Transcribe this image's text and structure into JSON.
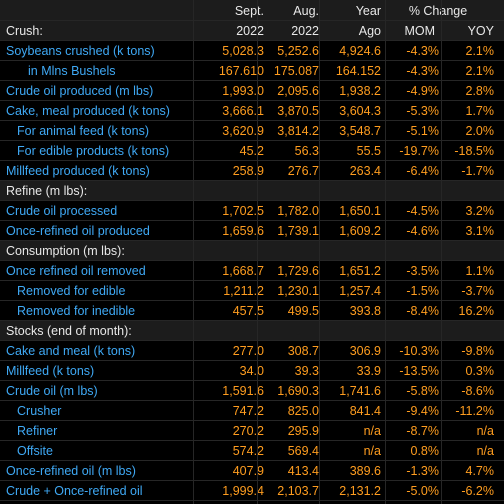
{
  "header": {
    "row1": {
      "sept": "Sept.",
      "aug": "Aug.",
      "year": "Year",
      "change": "% Change"
    },
    "row2": {
      "label": "Crush:",
      "sept": "2022",
      "aug": "2022",
      "year": "Ago",
      "mom": "MOM",
      "yoy": "YOY"
    }
  },
  "rows": [
    {
      "type": "data",
      "indent": 0,
      "label": "Soybeans crushed (k tons)",
      "sept": "5,028.3",
      "aug": "5,252.6",
      "year": "4,924.6",
      "mom": "-4.3%",
      "yoy": "2.1%"
    },
    {
      "type": "data",
      "indent": 1,
      "label": "in Mlns Bushels",
      "sept": "167.610",
      "aug": "175.087",
      "year": "164.152",
      "mom": "-4.3%",
      "yoy": "2.1%"
    },
    {
      "type": "data",
      "indent": 0,
      "label": "Crude oil produced (m lbs)",
      "sept": "1,993.0",
      "aug": "2,095.6",
      "year": "1,938.2",
      "mom": "-4.9%",
      "yoy": "2.8%"
    },
    {
      "type": "data",
      "indent": 0,
      "label": "Cake, meal produced (k tons)",
      "sept": "3,666.1",
      "aug": "3,870.5",
      "year": "3,604.3",
      "mom": "-5.3%",
      "yoy": "1.7%"
    },
    {
      "type": "data",
      "indent": 2,
      "label": "For animal feed (k tons)",
      "sept": "3,620.9",
      "aug": "3,814.2",
      "year": "3,548.7",
      "mom": "-5.1%",
      "yoy": "2.0%"
    },
    {
      "type": "data",
      "indent": 2,
      "label": "For edible products (k tons)",
      "sept": "45.2",
      "aug": "56.3",
      "year": "55.5",
      "mom": "-19.7%",
      "yoy": "-18.5%"
    },
    {
      "type": "data",
      "indent": 0,
      "label": "Millfeed produced (k tons)",
      "sept": "258.9",
      "aug": "276.7",
      "year": "263.4",
      "mom": "-6.4%",
      "yoy": "-1.7%"
    },
    {
      "type": "section",
      "label": "Refine (m lbs):"
    },
    {
      "type": "data",
      "indent": 0,
      "label": "Crude oil processed",
      "sept": "1,702.5",
      "aug": "1,782.0",
      "year": "1,650.1",
      "mom": "-4.5%",
      "yoy": "3.2%"
    },
    {
      "type": "data",
      "indent": 0,
      "label": "Once-refined oil produced",
      "sept": "1,659.6",
      "aug": "1,739.1",
      "year": "1,609.2",
      "mom": "-4.6%",
      "yoy": "3.1%"
    },
    {
      "type": "section",
      "label": "Consumption (m lbs):"
    },
    {
      "type": "data",
      "indent": 0,
      "label": "Once refined oil removed",
      "sept": "1,668.7",
      "aug": "1,729.6",
      "year": "1,651.2",
      "mom": "-3.5%",
      "yoy": "1.1%"
    },
    {
      "type": "data",
      "indent": 2,
      "label": "Removed for edible",
      "sept": "1,211.2",
      "aug": "1,230.1",
      "year": "1,257.4",
      "mom": "-1.5%",
      "yoy": "-3.7%"
    },
    {
      "type": "data",
      "indent": 2,
      "label": "Removed for inedible",
      "sept": "457.5",
      "aug": "499.5",
      "year": "393.8",
      "mom": "-8.4%",
      "yoy": "16.2%"
    },
    {
      "type": "section",
      "label": "Stocks (end of month):"
    },
    {
      "type": "data",
      "indent": 0,
      "label": "Cake and meal (k tons)",
      "sept": "277.0",
      "aug": "308.7",
      "year": "306.9",
      "mom": "-10.3%",
      "yoy": "-9.8%"
    },
    {
      "type": "data",
      "indent": 0,
      "label": "Millfeed (k tons)",
      "sept": "34.0",
      "aug": "39.3",
      "year": "33.9",
      "mom": "-13.5%",
      "yoy": "0.3%"
    },
    {
      "type": "data",
      "indent": 0,
      "label": "Crude oil (m lbs)",
      "sept": "1,591.6",
      "aug": "1,690.3",
      "year": "1,741.6",
      "mom": "-5.8%",
      "yoy": "-8.6%"
    },
    {
      "type": "data",
      "indent": 2,
      "label": "Crusher",
      "sept": "747.2",
      "aug": "825.0",
      "year": "841.4",
      "mom": "-9.4%",
      "yoy": "-11.2%"
    },
    {
      "type": "data",
      "indent": 2,
      "label": "Refiner",
      "sept": "270.2",
      "aug": "295.9",
      "year": "n/a",
      "mom": "-8.7%",
      "yoy": "n/a"
    },
    {
      "type": "data",
      "indent": 2,
      "label": "Offsite",
      "sept": "574.2",
      "aug": "569.4",
      "year": "n/a",
      "mom": "0.8%",
      "yoy": "n/a"
    },
    {
      "type": "data",
      "indent": 0,
      "label": "Once-refined oil (m lbs)",
      "sept": "407.9",
      "aug": "413.4",
      "year": "389.6",
      "mom": "-1.3%",
      "yoy": "4.7%"
    },
    {
      "type": "data",
      "indent": 0,
      "label": "Crude + Once-refined oil",
      "sept": "1,999.4",
      "aug": "2,103.7",
      "year": "2,131.2",
      "mom": "-5.0%",
      "yoy": "-6.2%"
    }
  ]
}
